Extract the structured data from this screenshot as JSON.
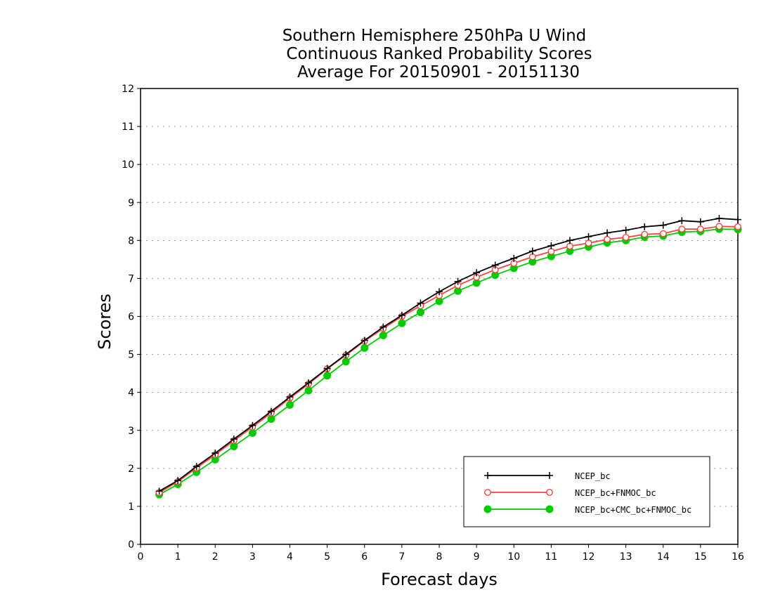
{
  "chart_data": {
    "type": "line",
    "title": [
      "Southern Hemisphere 250hPa U Wind",
      "Continuous Ranked Probability Scores",
      "Average For 20150901 - 20151130"
    ],
    "xlabel": "Forecast days",
    "ylabel": "Scores",
    "xlim": [
      0,
      16
    ],
    "ylim": [
      0,
      12
    ],
    "xticks": [
      "0",
      "1",
      "2",
      "3",
      "4",
      "5",
      "6",
      "7",
      "8",
      "9",
      "10",
      "11",
      "12",
      "13",
      "14",
      "15",
      "16"
    ],
    "yticks": [
      "0",
      "1",
      "2",
      "3",
      "4",
      "5",
      "6",
      "7",
      "8",
      "9",
      "10",
      "11",
      "12"
    ],
    "grid": true,
    "legend_position": "bottom-right",
    "x": [
      0.5,
      1,
      1.5,
      2,
      2.5,
      3,
      3.5,
      4,
      4.5,
      5,
      5.5,
      6,
      6.5,
      7,
      7.5,
      8,
      8.5,
      9,
      9.5,
      10,
      10.5,
      11,
      11.5,
      12,
      12.5,
      13,
      13.5,
      14,
      14.5,
      15,
      15.5,
      16
    ],
    "series": [
      {
        "name": "NCEP_bc",
        "color": "#000000",
        "marker": "plus",
        "values": [
          1.4,
          1.68,
          2.05,
          2.4,
          2.77,
          3.13,
          3.5,
          3.88,
          4.25,
          4.63,
          5.0,
          5.37,
          5.72,
          6.03,
          6.35,
          6.65,
          6.92,
          7.15,
          7.35,
          7.53,
          7.72,
          7.86,
          8.0,
          8.1,
          8.2,
          8.27,
          8.36,
          8.4,
          8.52,
          8.49,
          8.58,
          8.55
        ]
      },
      {
        "name": "NCEP_bc+FNMOC_bc",
        "color": "#ff4040",
        "marker": "open-circle",
        "values": [
          1.36,
          1.65,
          2.01,
          2.36,
          2.73,
          3.09,
          3.46,
          3.85,
          4.22,
          4.62,
          4.98,
          5.35,
          5.68,
          6.0,
          6.28,
          6.55,
          6.82,
          7.03,
          7.23,
          7.4,
          7.57,
          7.71,
          7.85,
          7.93,
          8.03,
          8.08,
          8.16,
          8.18,
          8.3,
          8.3,
          8.37,
          8.36
        ]
      },
      {
        "name": "NCEP_bc+CMC_bc+FNMOC_bc",
        "color": "#00cc00",
        "marker": "filled-circle",
        "values": [
          1.31,
          1.58,
          1.9,
          2.23,
          2.58,
          2.93,
          3.3,
          3.67,
          4.05,
          4.44,
          4.81,
          5.17,
          5.5,
          5.82,
          6.11,
          6.4,
          6.67,
          6.88,
          7.09,
          7.27,
          7.44,
          7.58,
          7.72,
          7.83,
          7.94,
          8.0,
          8.09,
          8.12,
          8.22,
          8.24,
          8.3,
          8.29
        ]
      }
    ]
  }
}
